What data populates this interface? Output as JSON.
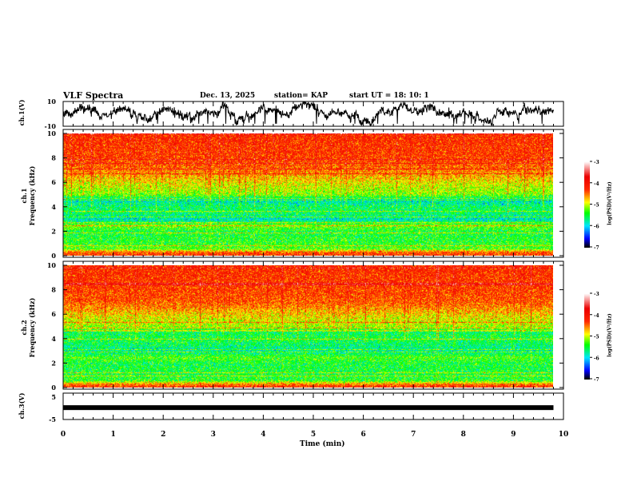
{
  "header": {
    "title": "VLF Spectra",
    "date": "Dec. 13, 2025",
    "station": "station= KAP",
    "start": "start  UT =   18: 10: 1"
  },
  "chart_data": [
    {
      "type": "line",
      "name": "ch1",
      "ylabel": "ch.1(V)",
      "ylim": [
        -10,
        10
      ],
      "yticks": [
        "10",
        "-10"
      ],
      "xlim": [
        0,
        10
      ],
      "data_end": 9.8,
      "description_values": "noisy waveform around 0 V, amplitude roughly ±5 V"
    },
    {
      "type": "heatmap",
      "name": "ch1-spectrogram",
      "ylabel": "ch.1\nFrequency (kHz)",
      "ylabel_ch": "ch.1",
      "ylabel_freq": "Frequency (kHz)",
      "ylim": [
        0,
        10
      ],
      "yticks": [
        "0",
        "2",
        "4",
        "6",
        "8",
        "10"
      ],
      "xlim": [
        0,
        10
      ],
      "data_end": 9.8,
      "mean_log_psd_profile": {
        "freq_khz": [
          0,
          0.3,
          0.6,
          1,
          2,
          2.5,
          3,
          3.5,
          4,
          4.6,
          5,
          6,
          7,
          8,
          10
        ],
        "log_psd": [
          -4.3,
          -4.4,
          -5.3,
          -5.4,
          -5.5,
          -5.2,
          -5.9,
          -5.6,
          -5.6,
          -5.9,
          -5.2,
          -4.9,
          -4.5,
          -4.3,
          -4.2
        ]
      },
      "colorbar": {
        "label": "log(PSD)(V²/Hz)",
        "range": [
          -7,
          -3
        ],
        "ticks": [
          "-3",
          "-4",
          "-5",
          "-6",
          "-7"
        ]
      }
    },
    {
      "type": "heatmap",
      "name": "ch2-spectrogram",
      "ylabel_ch": "ch.2",
      "ylabel_freq": "Frequency (kHz)",
      "ylim": [
        0,
        10
      ],
      "yticks": [
        "0",
        "2",
        "4",
        "6",
        "8",
        "10"
      ],
      "xlim": [
        0,
        10
      ],
      "data_end": 9.8,
      "mean_log_psd_profile": {
        "freq_khz": [
          0,
          0.3,
          0.6,
          1,
          2,
          2.5,
          3,
          3.5,
          4,
          4.6,
          5,
          6,
          7,
          8,
          10
        ],
        "log_psd": [
          -4.2,
          -4.5,
          -5.4,
          -5.5,
          -5.5,
          -5.3,
          -5.8,
          -5.6,
          -5.5,
          -5.6,
          -5.1,
          -4.8,
          -4.4,
          -4.3,
          -4.2
        ]
      },
      "colorbar": {
        "label": "log(PSD)(V²/Hz)",
        "range": [
          -7,
          -3
        ],
        "ticks": [
          "-3",
          "-4",
          "-5",
          "-6",
          "-7"
        ]
      }
    },
    {
      "type": "line",
      "name": "ch3",
      "ylabel": "ch.3(V)",
      "ylim": [
        -5,
        5
      ],
      "yticks": [
        "5",
        "-5"
      ],
      "xlim": [
        0,
        10
      ],
      "data_end": 9.8,
      "level": 0.3
    }
  ],
  "xaxis": {
    "label": "Time  (min)",
    "ticks": [
      "0",
      "1",
      "2",
      "3",
      "4",
      "5",
      "6",
      "7",
      "8",
      "9",
      "10"
    ]
  }
}
